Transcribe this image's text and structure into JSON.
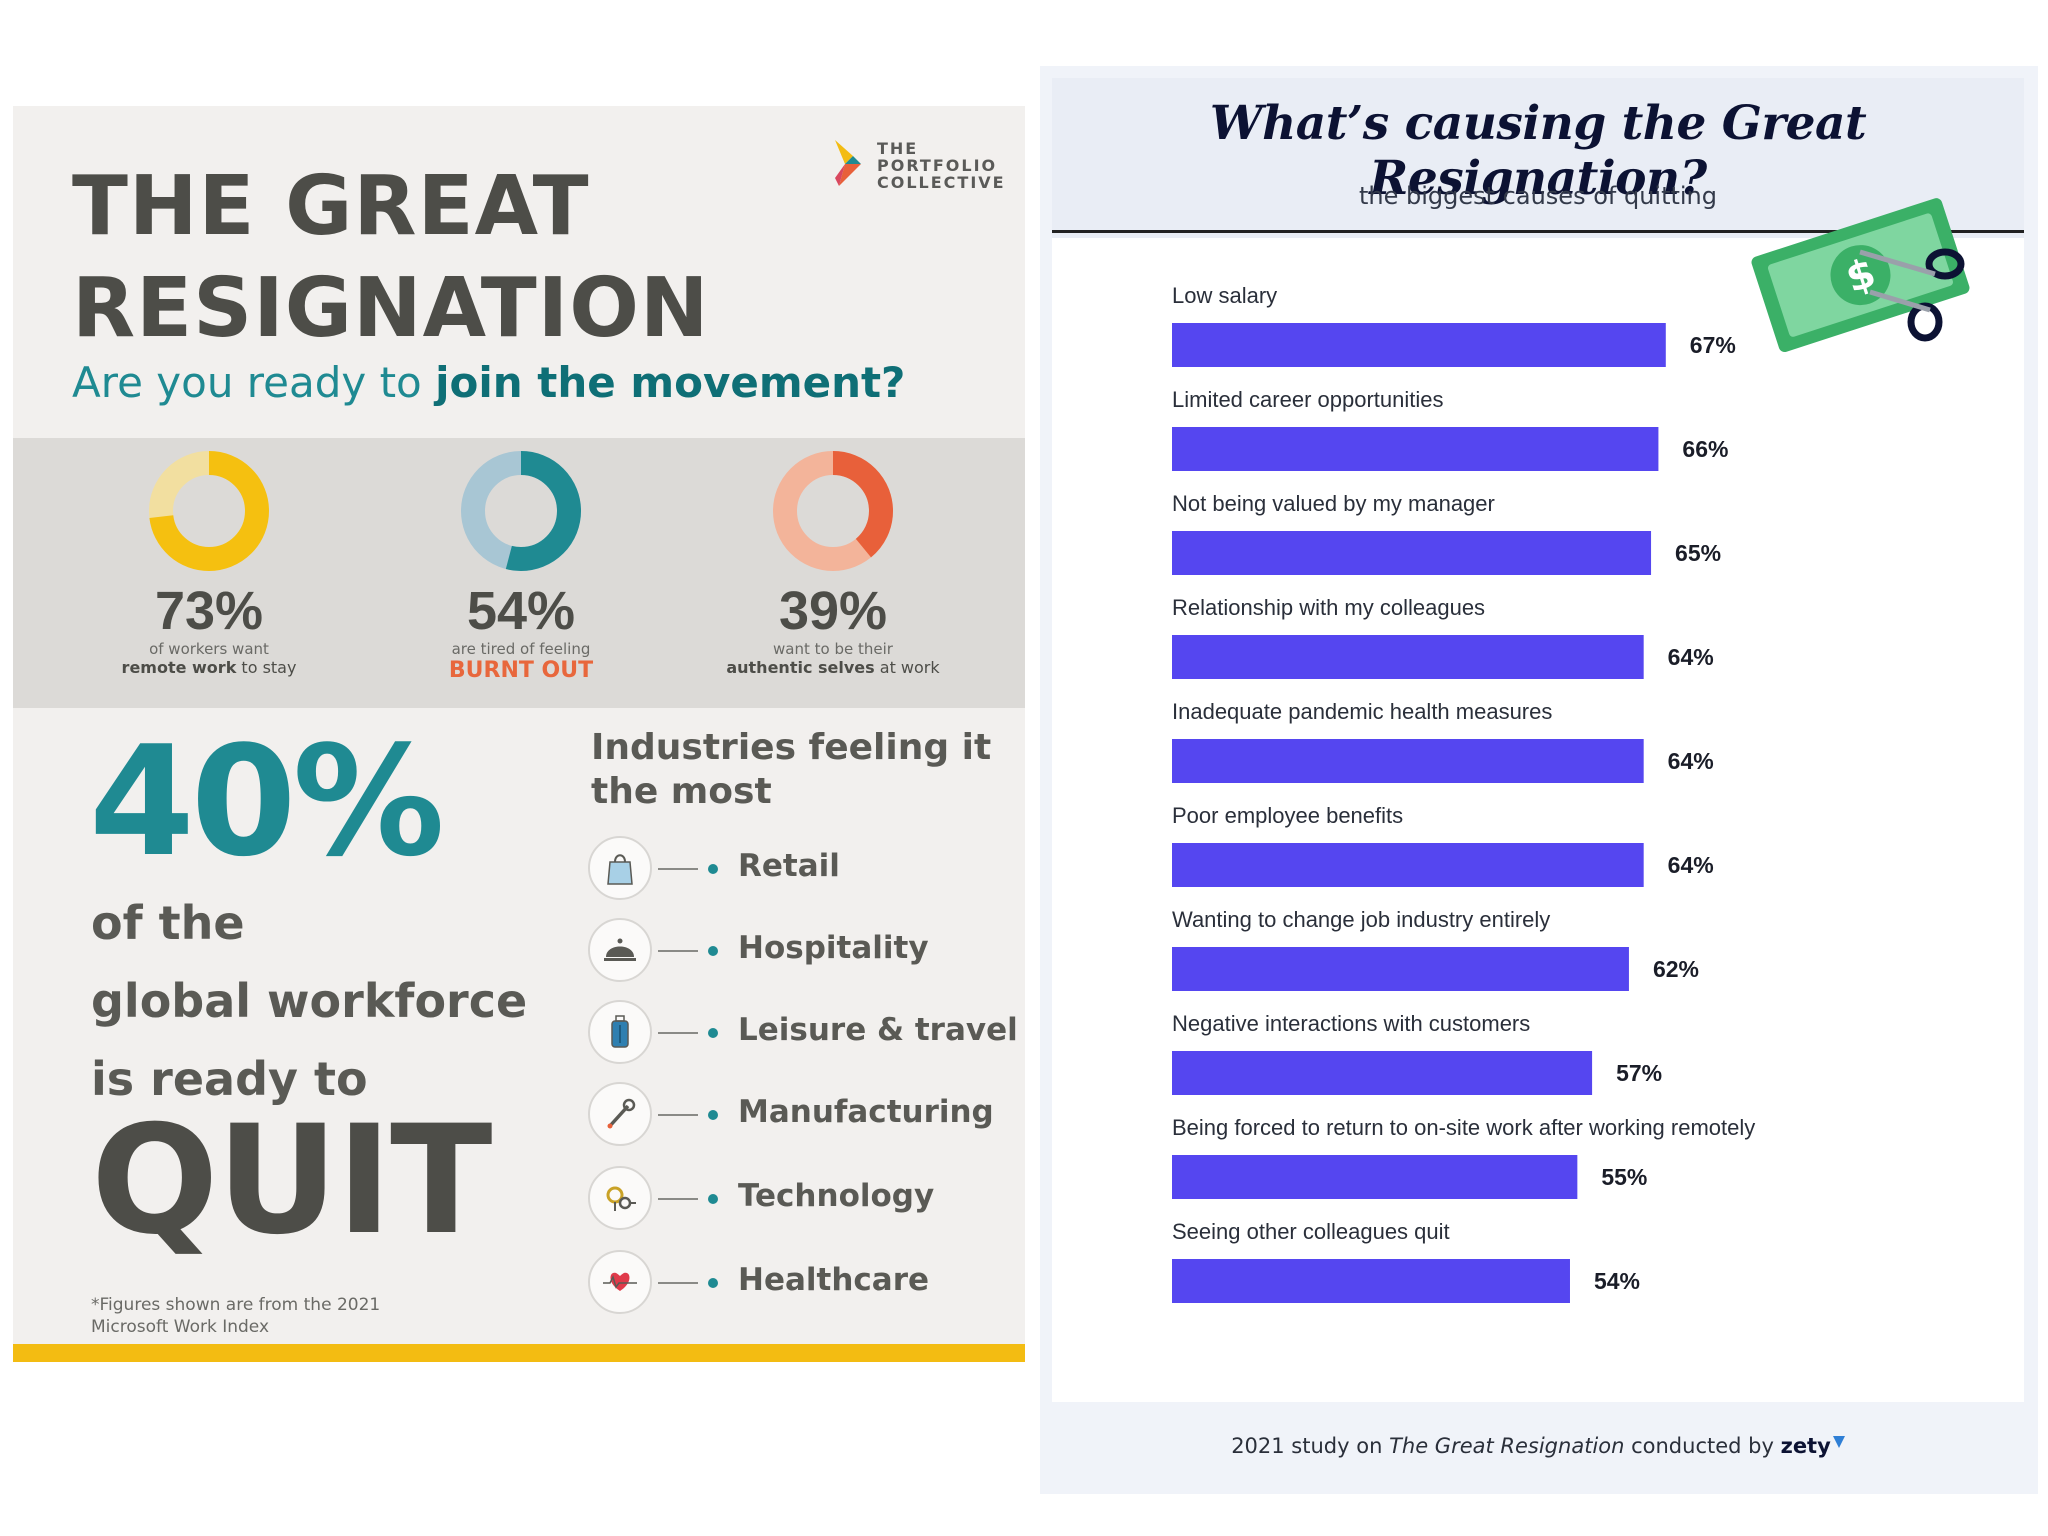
{
  "left": {
    "title_line1": "THE GREAT",
    "title_line2": "RESIGNATION",
    "subtitle_plain": "Are you ready to ",
    "subtitle_bold": "join the movement?",
    "brand": [
      "THE",
      "PORTFOLIO",
      "COLLECTIVE"
    ],
    "stats": [
      {
        "value": "73%",
        "fraction": 0.73,
        "line1": "of workers want",
        "line2_bold": "remote work",
        "line2_rest": " to stay",
        "color": "#f5c010",
        "track": "#f2dfa0"
      },
      {
        "value": "54%",
        "fraction": 0.54,
        "line1": "are tired of feeling",
        "line2_bold": "BURNT OUT",
        "line2_rest": "",
        "color": "#1f8a92",
        "track": "#a8c6d4"
      },
      {
        "value": "39%",
        "fraction": 0.39,
        "line1": "want to be their",
        "line2_bold": "authentic selves",
        "line2_rest": " at work",
        "color": "#e8603a",
        "track": "#f3b49a"
      }
    ],
    "big_pct": "40%",
    "big_lines": [
      "of the",
      "global workforce",
      "is ready to"
    ],
    "quit": "QUIT",
    "footnote_line1": "*Figures shown are from the 2021",
    "footnote_line2": "Microsoft Work Index",
    "industries_heading_line1": "Industries feeling it",
    "industries_heading_line2": "the most",
    "industries": [
      {
        "label": "Retail",
        "icon": "shopping-bag-icon"
      },
      {
        "label": "Hospitality",
        "icon": "cloche-icon"
      },
      {
        "label": "Leisure & travel",
        "icon": "suitcase-icon"
      },
      {
        "label": "Manufacturing",
        "icon": "wrench-icon"
      },
      {
        "label": "Technology",
        "icon": "circuit-icon"
      },
      {
        "label": "Healthcare",
        "icon": "heart-pulse-icon"
      }
    ],
    "colors": {
      "teal": "#1f8a92",
      "yellow": "#f3bc12",
      "orange": "#e8673c",
      "gray": "#4d4d48"
    }
  },
  "right": {
    "title": "What’s causing the Great Resignation?",
    "subtitle": "the biggest causes of quitting",
    "footer_pre": "2021 study on ",
    "footer_italic": "The Great Resignation",
    "footer_mid": " conducted by ",
    "footer_brand": "zety",
    "money_icon": "cut-dollar-bill-icon",
    "bar_color": "#5546f0"
  },
  "chart_data": {
    "type": "bar",
    "orientation": "horizontal",
    "title": "What’s causing the Great Resignation?",
    "subtitle": "the biggest causes of quitting",
    "categories": [
      "Low salary",
      "Limited career opportunities",
      "Not being valued by my manager",
      "Relationship with my colleagues",
      "Inadequate pandemic health measures",
      "Poor employee benefits",
      "Wanting to change job industry entirely",
      "Negative interactions with customers",
      "Being forced to return to on-site work after working remotely",
      "Seeing other colleagues quit"
    ],
    "values": [
      67,
      66,
      65,
      64,
      64,
      64,
      62,
      57,
      55,
      54
    ],
    "value_labels": [
      "67%",
      "66%",
      "65%",
      "64%",
      "64%",
      "64%",
      "62%",
      "57%",
      "55%",
      "54%"
    ],
    "unit": "%",
    "xlim": [
      0,
      100
    ],
    "grid": false,
    "legend": "none"
  }
}
